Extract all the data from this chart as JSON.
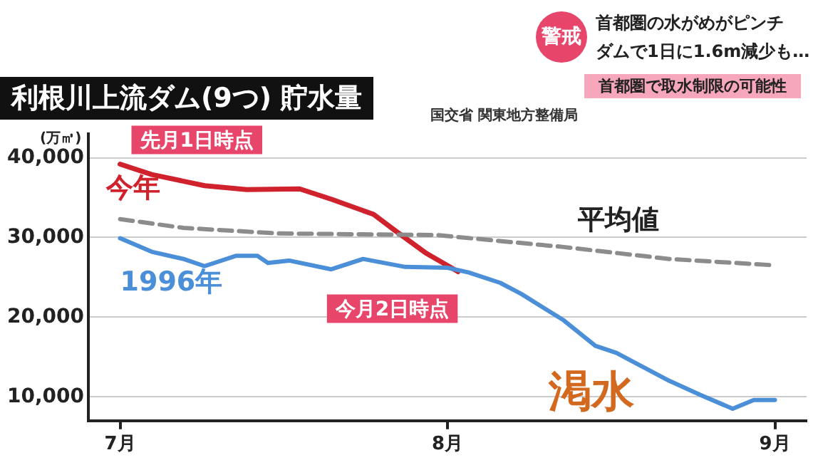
{
  "chart_data": {
    "type": "line",
    "title": "利根川上流ダム(9つ) 貯水量",
    "ylabel": "(万㎥)",
    "xlim": [
      "--06-28",
      "--09-04"
    ],
    "xticks": [
      {
        "value": "--07-01",
        "label": "7月"
      },
      {
        "value": "--08-01",
        "label": "8月"
      },
      {
        "value": "--09-01",
        "label": "9月"
      }
    ],
    "ylim": [
      7000,
      43000
    ],
    "yticks": [
      {
        "value": 10000,
        "label": "10,000"
      },
      {
        "value": 20000,
        "label": "20,000"
      },
      {
        "value": 30000,
        "label": "30,000"
      },
      {
        "value": 40000,
        "label": "40,000"
      }
    ],
    "grid": "y",
    "legend": false,
    "marker": "none",
    "series": [
      {
        "name": "平均値",
        "color": "#8c8c8c",
        "line_style": "dashed",
        "x": [
          "--07-01",
          "--07-07",
          "--07-16",
          "--07-31",
          "--08-12",
          "--08-22",
          "--09-01"
        ],
        "values": [
          32300,
          31200,
          30500,
          30300,
          28800,
          27300,
          26500
        ]
      },
      {
        "name": "1996年",
        "color": "#4a8fd8",
        "line_style": "solid",
        "x": [
          "--07-01",
          "--07-04",
          "--07-07",
          "--07-09",
          "--07-12",
          "--07-14",
          "--07-15",
          "--07-17",
          "--07-21",
          "--07-24",
          "--07-28",
          "--08-01",
          "--08-03",
          "--08-06",
          "--08-08",
          "--08-12",
          "--08-15",
          "--08-17",
          "--08-22",
          "--08-25",
          "--08-28",
          "--08-30",
          "--09-01"
        ],
        "values": [
          29900,
          28200,
          27300,
          26400,
          27700,
          27700,
          26800,
          27100,
          26000,
          27300,
          26300,
          26200,
          25600,
          24300,
          22900,
          19600,
          16400,
          15500,
          12000,
          10200,
          8500,
          9600,
          9600
        ]
      },
      {
        "name": "今年",
        "color": "#d0222c",
        "line_style": "solid",
        "x": [
          "--07-01",
          "--07-04",
          "--07-09",
          "--07-13",
          "--07-18",
          "--07-21",
          "--07-25",
          "--07-27",
          "--07-30",
          "--08-02"
        ],
        "values": [
          39200,
          37900,
          36500,
          36000,
          36100,
          34800,
          32900,
          30900,
          28000,
          25700
        ]
      }
    ],
    "annotations": [
      "警戒",
      "首都圏の水がめがピンチ",
      "ダムで1日に1.6m減少も…",
      "首都圏で取水制限の可能性",
      "国交省 関東地方整備局",
      "渇水",
      {
        "text": "先月1日時点",
        "x": "--07-01",
        "y": 39200
      },
      {
        "text": "今月2日時点",
        "x": "--08-02",
        "y": 25700
      }
    ]
  }
}
